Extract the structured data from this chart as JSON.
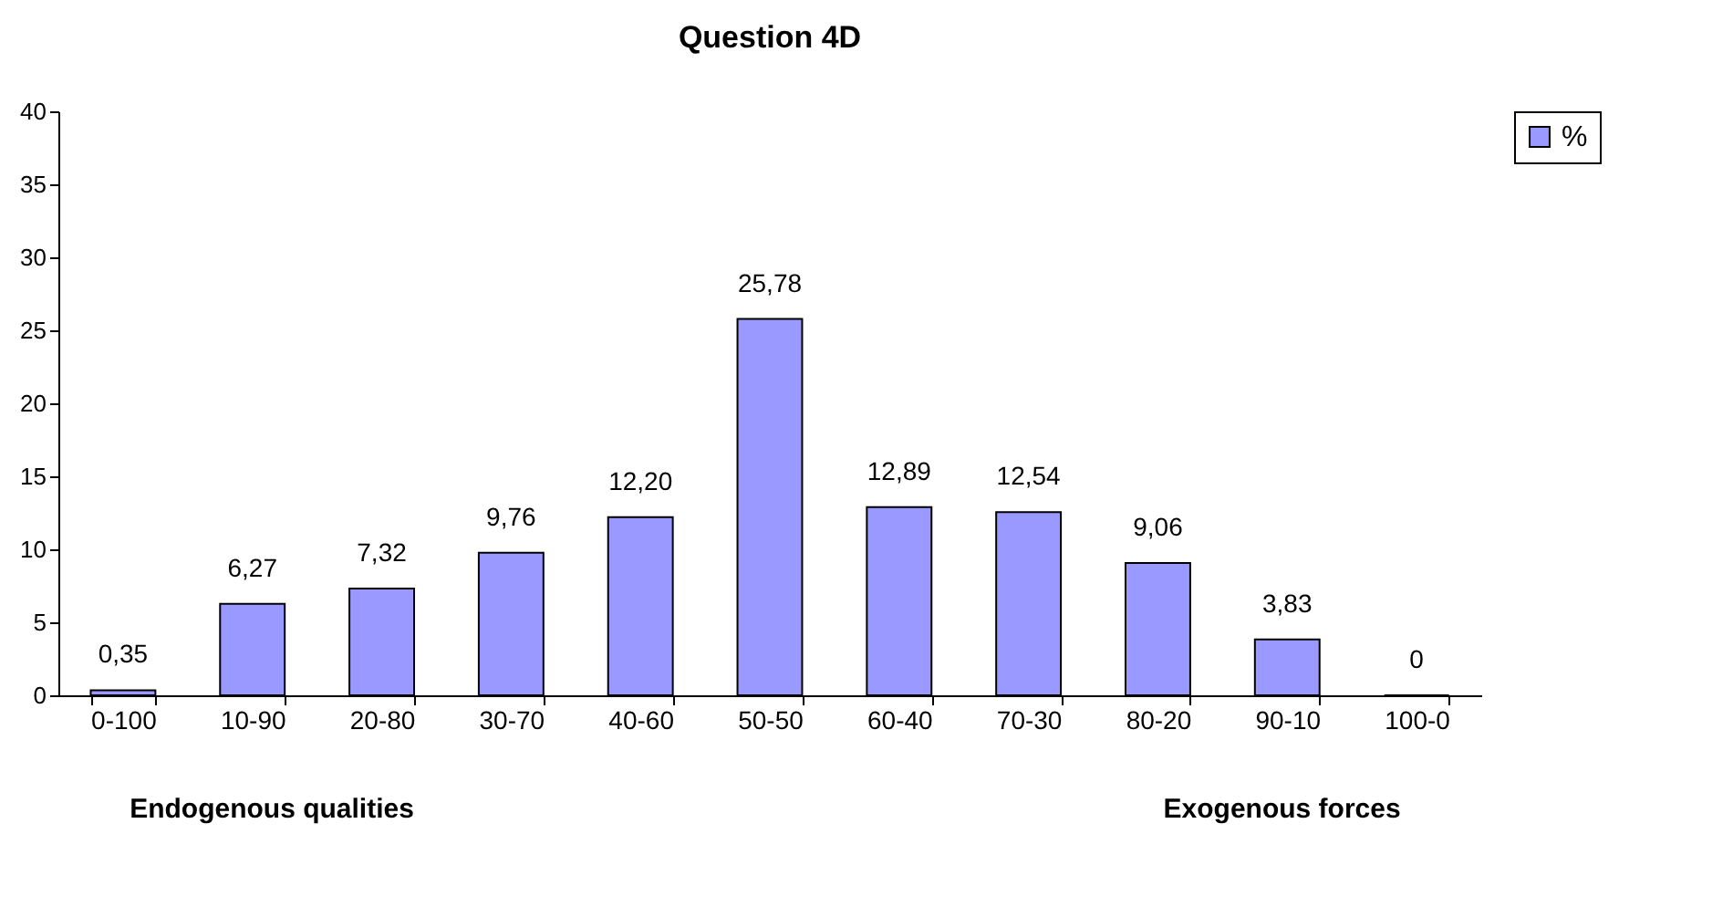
{
  "chart_data": {
    "type": "bar",
    "title": "Question 4D",
    "categories": [
      "0-100",
      "10-90",
      "20-80",
      "30-70",
      "40-60",
      "50-50",
      "60-40",
      "70-30",
      "80-20",
      "90-10",
      "100-0"
    ],
    "series": [
      {
        "name": "%",
        "color": "#9999ff",
        "values": [
          0.35,
          6.27,
          7.32,
          9.76,
          12.2,
          25.78,
          12.89,
          12.54,
          9.06,
          3.83,
          0
        ],
        "value_labels": [
          "0,35",
          "6,27",
          "7,32",
          "9,76",
          "12,20",
          "25,78",
          "12,89",
          "12,54",
          "9,06",
          "3,83",
          "0"
        ]
      }
    ],
    "ylim": [
      0,
      40
    ],
    "yticks": [
      0,
      5,
      10,
      15,
      20,
      25,
      30,
      35,
      40
    ],
    "grid": false,
    "legend": "right",
    "annotations": [
      "Endogenous qualities",
      "Exogenous forces"
    ]
  }
}
